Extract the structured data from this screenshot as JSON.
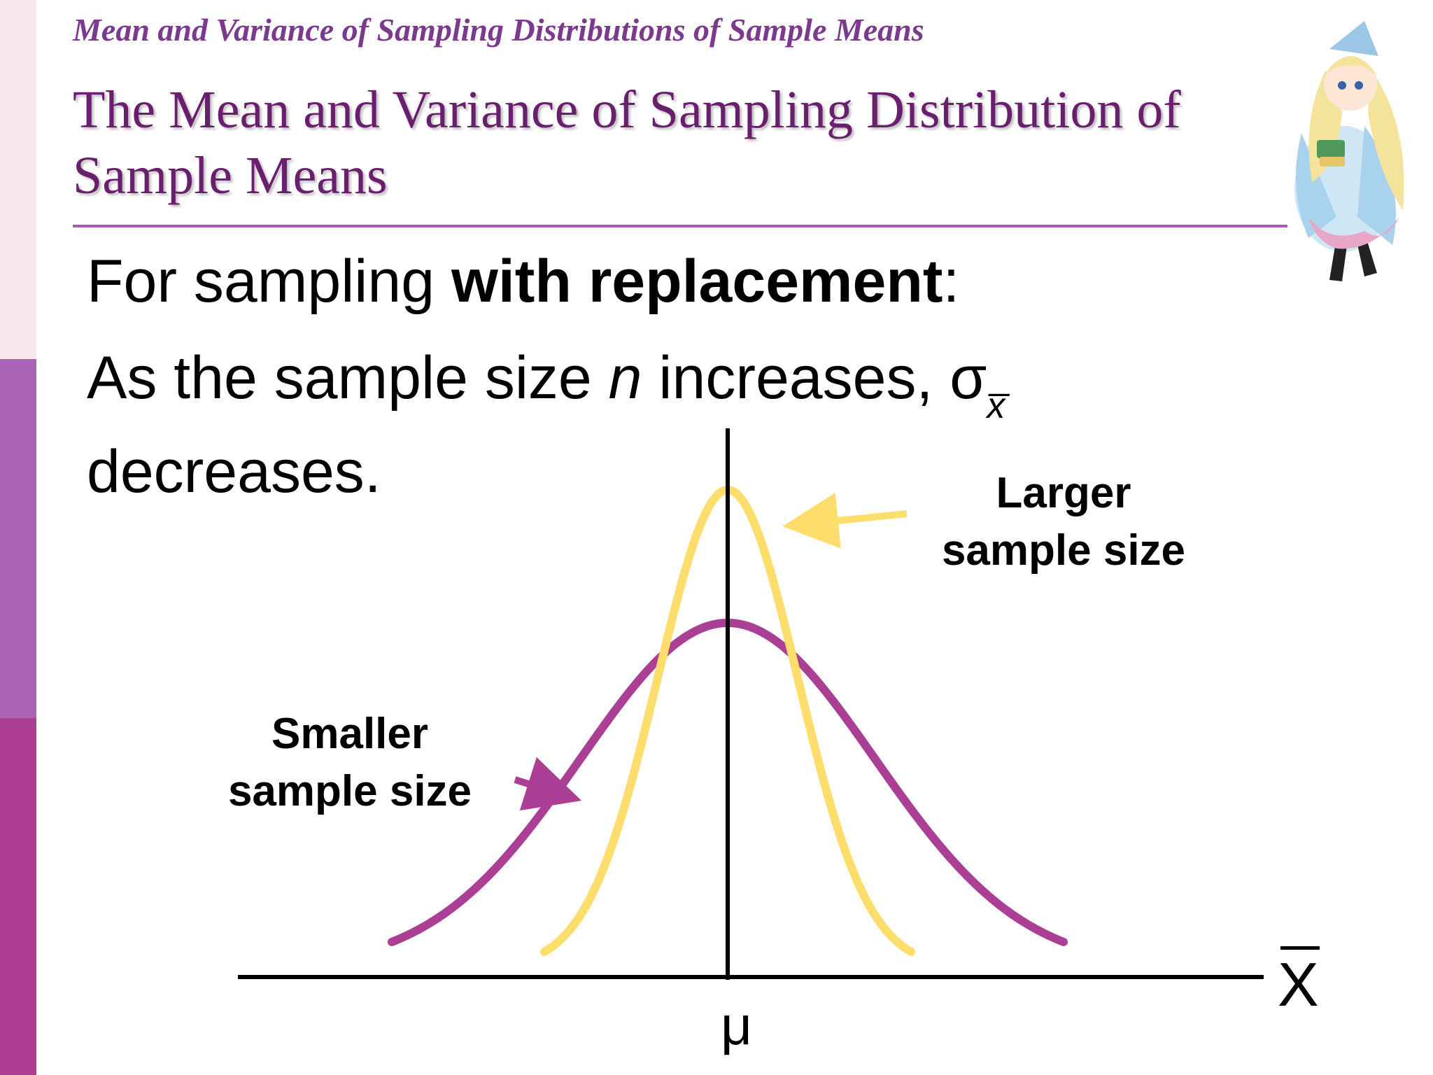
{
  "header": {
    "breadcrumb": "Mean and Variance of Sampling Distributions of Sample Means",
    "title": "The Mean and Variance of Sampling Distribution of Sample Means"
  },
  "body": {
    "line1_prefix": "For sampling ",
    "line1_bold": "with replacement",
    "line1_suffix": ":",
    "line2_prefix": "As the sample size ",
    "line2_var": "n",
    "line2_suffix": " increases, ",
    "sigma_symbol": "σ",
    "sigma_subscript": "x̅",
    "line3": "decreases."
  },
  "diagram": {
    "larger_label_line1": "Larger",
    "larger_label_line2": "sample size",
    "smaller_label_line1": "Smaller",
    "smaller_label_line2": "sample size",
    "mean_label": "μ",
    "axis_label": "X",
    "colors": {
      "larger": "#fddd6b",
      "smaller": "#ab3f95",
      "axis": "#000000"
    },
    "relative_spread": {
      "larger": 1,
      "smaller": 2.1
    }
  },
  "theme": {
    "accent": "#ab64b5",
    "sidebar_colors": [
      "#f7e9ee",
      "#ab64b5",
      "#ad3d93"
    ],
    "title_color": "#6a1f6e"
  }
}
